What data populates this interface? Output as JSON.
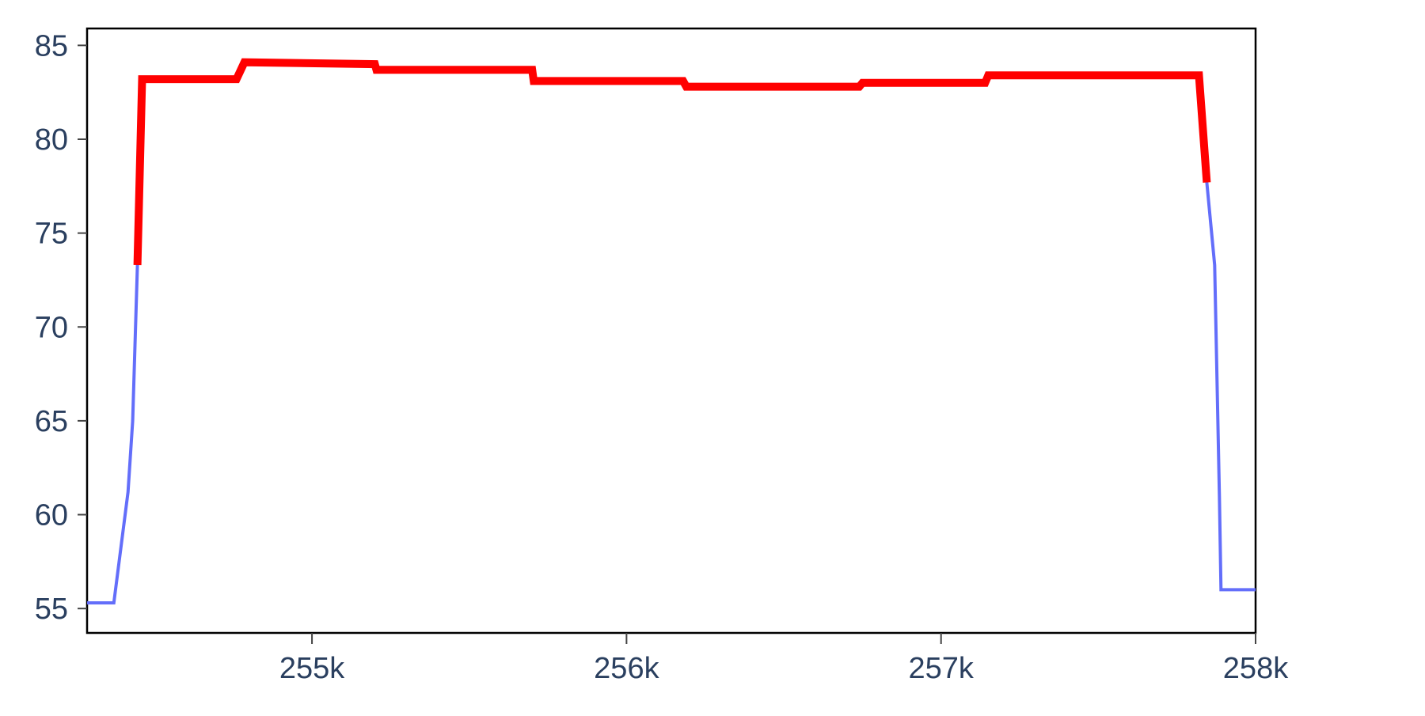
{
  "chart_data": {
    "type": "line",
    "title": "",
    "xlabel": "",
    "ylabel": "",
    "xlim": [
      254285,
      258000
    ],
    "ylim": [
      53.7,
      85.9
    ],
    "x_ticks": [
      {
        "value": 255000,
        "label": "255k"
      },
      {
        "value": 256000,
        "label": "256k"
      },
      {
        "value": 257000,
        "label": "257k"
      },
      {
        "value": 258000,
        "label": "258k"
      }
    ],
    "y_ticks": [
      {
        "value": 55,
        "label": "55"
      },
      {
        "value": 60,
        "label": "60"
      },
      {
        "value": 65,
        "label": "65"
      },
      {
        "value": 70,
        "label": "70"
      },
      {
        "value": 75,
        "label": "75"
      },
      {
        "value": 80,
        "label": "80"
      },
      {
        "value": 85,
        "label": "85"
      }
    ],
    "grid": false,
    "legend": "none",
    "series": [
      {
        "color": "#636efa",
        "points": [
          [
            254285,
            55.3
          ],
          [
            254370,
            55.3
          ],
          [
            254415,
            61.2
          ],
          [
            254430,
            65.0
          ],
          [
            254445,
            73.3
          ],
          [
            254460,
            83.2
          ],
          [
            254600,
            83.2
          ],
          [
            254760,
            83.2
          ],
          [
            254785,
            84.1
          ],
          [
            255200,
            84.0
          ],
          [
            255205,
            83.7
          ],
          [
            255700,
            83.7
          ],
          [
            255705,
            83.1
          ],
          [
            256180,
            83.1
          ],
          [
            256190,
            82.8
          ],
          [
            256740,
            82.8
          ],
          [
            256750,
            83.0
          ],
          [
            257140,
            83.0
          ],
          [
            257150,
            83.4
          ],
          [
            257820,
            83.4
          ],
          [
            257845,
            77.7
          ],
          [
            257870,
            73.3
          ],
          [
            257885,
            61.0
          ],
          [
            257890,
            56.0
          ],
          [
            257950,
            56.0
          ],
          [
            258000,
            56.0
          ]
        ]
      },
      {
        "color": "#ff0000",
        "points": [
          [
            254445,
            73.3
          ],
          [
            254460,
            83.2
          ],
          [
            254600,
            83.2
          ],
          [
            254760,
            83.2
          ],
          [
            254785,
            84.1
          ],
          [
            255200,
            84.0
          ],
          [
            255205,
            83.7
          ],
          [
            255700,
            83.7
          ],
          [
            255705,
            83.1
          ],
          [
            256180,
            83.1
          ],
          [
            256190,
            82.8
          ],
          [
            256740,
            82.8
          ],
          [
            256750,
            83.0
          ],
          [
            257140,
            83.0
          ],
          [
            257150,
            83.4
          ],
          [
            257820,
            83.4
          ],
          [
            257845,
            77.7
          ]
        ]
      }
    ]
  }
}
